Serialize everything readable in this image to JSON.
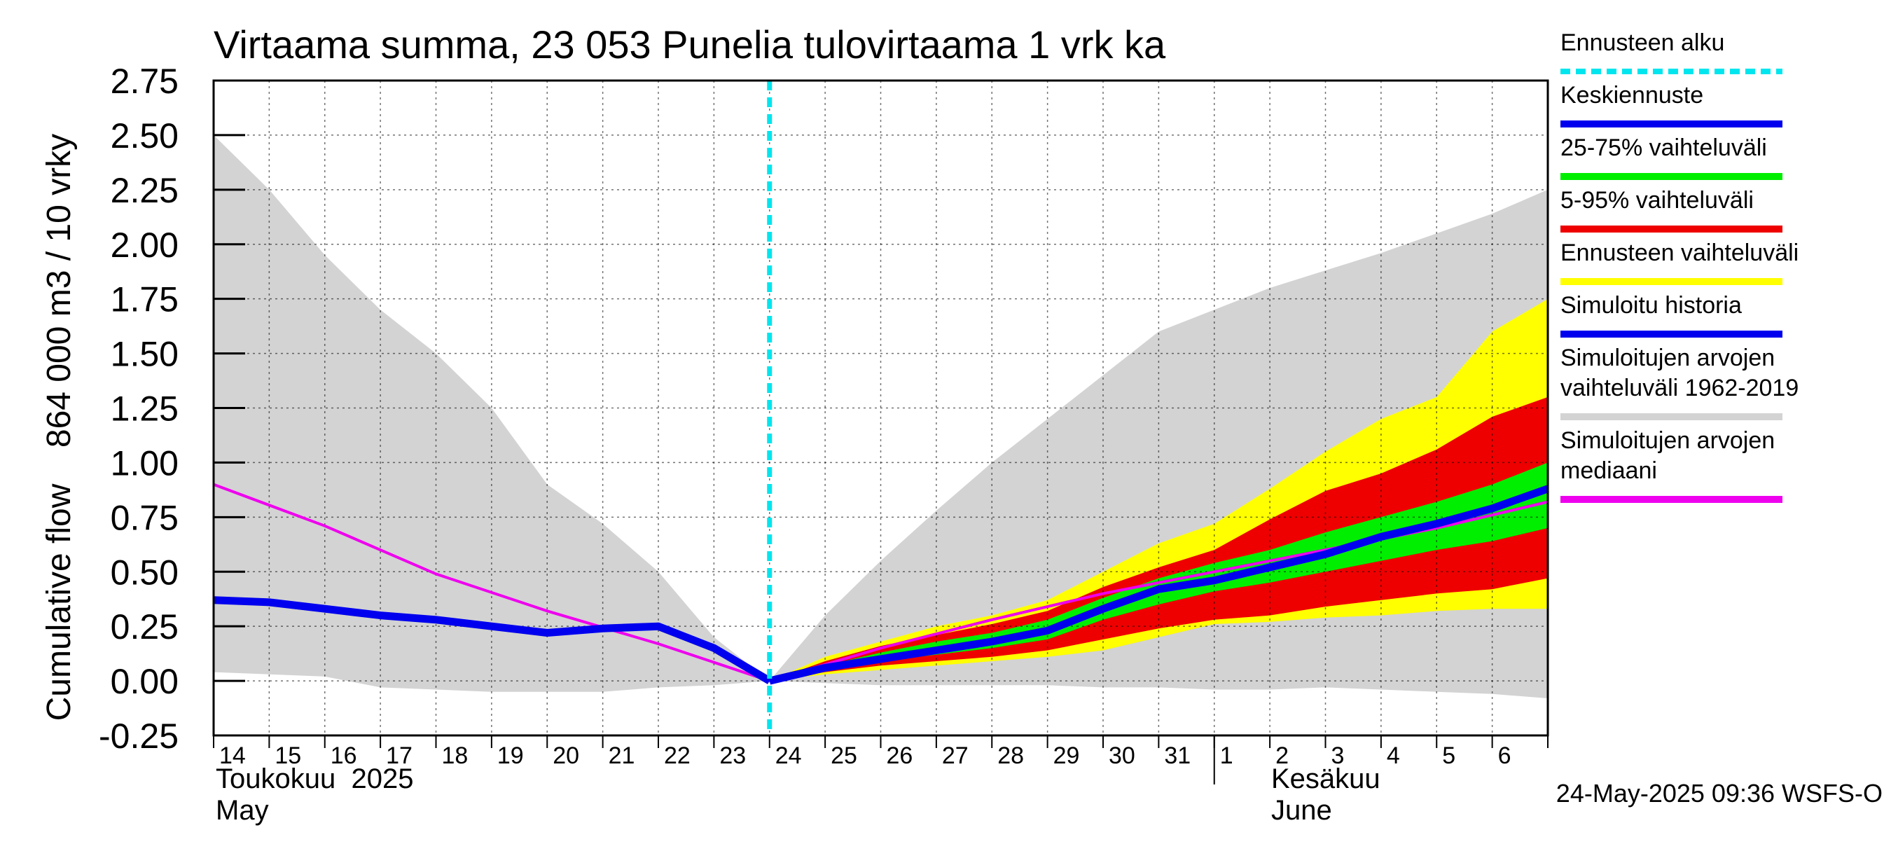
{
  "chart_data": {
    "type": "area",
    "title": "Virtaama summa, 23 053 Punelia tulovirtaama 1 vrk ka",
    "ylabel_fi": "864 000 m3 / 10 vrky",
    "ylabel_en": "Cumulative flow",
    "ylim": [
      -0.25,
      2.75
    ],
    "y_ticks": [
      "-0.25",
      "0.00",
      "0.25",
      "0.50",
      "0.75",
      "1.00",
      "1.25",
      "1.50",
      "1.75",
      "2.00",
      "2.25",
      "2.50",
      "2.75"
    ],
    "y_tick_values": [
      -0.25,
      0,
      0.25,
      0.5,
      0.75,
      1.0,
      1.25,
      1.5,
      1.75,
      2.0,
      2.25,
      2.5,
      2.75
    ],
    "x_range_days": [
      14,
      38
    ],
    "x_tick_labels": [
      "14",
      "15",
      "16",
      "17",
      "18",
      "19",
      "20",
      "21",
      "22",
      "23",
      "24",
      "25",
      "26",
      "27",
      "28",
      "29",
      "30",
      "31",
      "1",
      "2",
      "3",
      "4",
      "5",
      "6"
    ],
    "month_labels": {
      "may_fi": "Toukokuu  2025",
      "may_en": "May",
      "june_fi": "Kesäkuu",
      "june_en": "June"
    },
    "grid": true,
    "forecast_start_day": 24,
    "legend_position": "right",
    "legend": [
      {
        "key": "forecast_start",
        "label": "Ennusteen alku",
        "color": "#00e5ee",
        "style": "dashed"
      },
      {
        "key": "mean_forecast",
        "label": "Keskiennuste",
        "color": "#0000ee",
        "style": "line"
      },
      {
        "key": "range_25_75",
        "label": "25-75% vaihteluväli",
        "color": "#00ee00",
        "style": "line"
      },
      {
        "key": "range_5_95",
        "label": "5-95% vaihteluväli",
        "color": "#ee0000",
        "style": "line"
      },
      {
        "key": "forecast_range",
        "label": "Ennusteen vaihteluväli",
        "color": "#ffff00",
        "style": "line"
      },
      {
        "key": "simulated_history",
        "label": "Simuloitu historia",
        "color": "#0000ee",
        "style": "line"
      },
      {
        "key": "historical_range",
        "label": "Simuloitujen arvojen vaihteluväli 1962-2019",
        "lines": [
          "Simuloitujen arvojen",
          "vaihteluväli 1962-2019"
        ],
        "color": "#d3d3d3",
        "style": "line"
      },
      {
        "key": "historical_median",
        "label": "Simuloitujen arvojen mediaani",
        "lines": [
          "Simuloitujen arvojen",
          "mediaani"
        ],
        "color": "#ee00ee",
        "style": "line"
      }
    ],
    "historical_range": {
      "x": [
        14,
        15,
        16,
        17,
        18,
        19,
        20,
        21,
        22,
        23,
        24,
        25,
        26,
        27,
        28,
        29,
        30,
        31,
        32,
        33,
        34,
        35,
        36,
        37,
        38
      ],
      "upper": [
        2.5,
        2.25,
        1.95,
        1.7,
        1.5,
        1.25,
        0.9,
        0.72,
        0.5,
        0.2,
        0.0,
        0.3,
        0.55,
        0.78,
        1.0,
        1.2,
        1.4,
        1.6,
        1.7,
        1.8,
        1.88,
        1.96,
        2.05,
        2.14,
        2.25
      ],
      "lower": [
        0.04,
        0.03,
        0.02,
        -0.03,
        -0.04,
        -0.05,
        -0.05,
        -0.05,
        -0.03,
        -0.02,
        0.0,
        -0.01,
        -0.02,
        -0.02,
        -0.02,
        -0.02,
        -0.03,
        -0.03,
        -0.04,
        -0.04,
        -0.03,
        -0.04,
        -0.05,
        -0.06,
        -0.08
      ]
    },
    "forecast_range": {
      "x": [
        24,
        25,
        26,
        27,
        28,
        29,
        30,
        31,
        32,
        33,
        34,
        35,
        36,
        37,
        38
      ],
      "upper": [
        0.0,
        0.11,
        0.18,
        0.25,
        0.3,
        0.37,
        0.5,
        0.63,
        0.72,
        0.88,
        1.05,
        1.2,
        1.3,
        1.6,
        1.75
      ],
      "lower": [
        0.0,
        0.03,
        0.05,
        0.07,
        0.09,
        0.11,
        0.14,
        0.2,
        0.26,
        0.27,
        0.29,
        0.3,
        0.32,
        0.33,
        0.33
      ]
    },
    "range_5_95": {
      "x": [
        24,
        25,
        26,
        27,
        28,
        29,
        30,
        31,
        32,
        33,
        34,
        35,
        36,
        37,
        38
      ],
      "upper": [
        0.0,
        0.09,
        0.16,
        0.21,
        0.26,
        0.32,
        0.43,
        0.52,
        0.6,
        0.74,
        0.87,
        0.95,
        1.06,
        1.21,
        1.3
      ],
      "lower": [
        0.0,
        0.04,
        0.07,
        0.09,
        0.11,
        0.14,
        0.19,
        0.24,
        0.28,
        0.3,
        0.34,
        0.37,
        0.4,
        0.42,
        0.47
      ]
    },
    "range_25_75": {
      "x": [
        24,
        25,
        26,
        27,
        28,
        29,
        30,
        31,
        32,
        33,
        34,
        35,
        36,
        37,
        38
      ],
      "upper": [
        0.0,
        0.07,
        0.13,
        0.18,
        0.22,
        0.28,
        0.38,
        0.47,
        0.54,
        0.6,
        0.68,
        0.75,
        0.82,
        0.9,
        1.0
      ],
      "lower": [
        0.0,
        0.05,
        0.09,
        0.12,
        0.15,
        0.19,
        0.28,
        0.35,
        0.41,
        0.45,
        0.5,
        0.55,
        0.6,
        0.64,
        0.7
      ]
    },
    "mean_forecast": {
      "x": [
        24,
        25,
        26,
        27,
        28,
        29,
        30,
        31,
        32,
        33,
        34,
        35,
        36,
        37,
        38
      ],
      "y": [
        0.0,
        0.06,
        0.1,
        0.14,
        0.18,
        0.23,
        0.33,
        0.42,
        0.46,
        0.52,
        0.58,
        0.66,
        0.72,
        0.79,
        0.88
      ]
    },
    "simulated_history": {
      "x": [
        14,
        15,
        16,
        17,
        18,
        19,
        20,
        21,
        22,
        23,
        24
      ],
      "y": [
        0.37,
        0.36,
        0.33,
        0.3,
        0.28,
        0.25,
        0.22,
        0.24,
        0.25,
        0.15,
        0.0
      ]
    },
    "historical_median": {
      "x": [
        14,
        16,
        18,
        20,
        22,
        24,
        26,
        28,
        30,
        32,
        34,
        36,
        38
      ],
      "y": [
        0.9,
        0.71,
        0.49,
        0.32,
        0.17,
        0.0,
        0.15,
        0.28,
        0.4,
        0.5,
        0.6,
        0.7,
        0.82
      ]
    },
    "timestamp": "24-May-2025 09:36 WSFS-O"
  }
}
